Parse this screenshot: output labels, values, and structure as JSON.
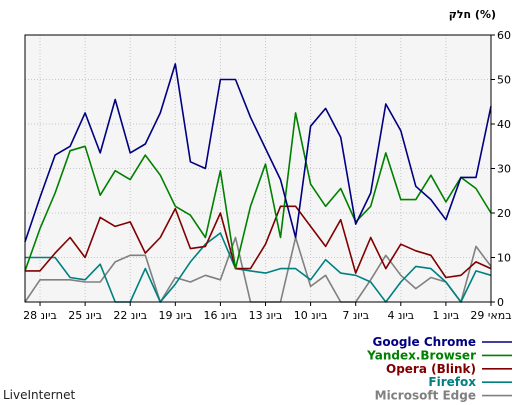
{
  "chart_data": {
    "type": "line",
    "unit_label": "חלק (%)",
    "ylim": [
      0,
      60
    ],
    "y_ticks": [
      "0",
      "10",
      "20",
      "30",
      "40",
      "50",
      "60"
    ],
    "x_tick_labels": [
      "29 במאי",
      "1 ביונ",
      "4 ביונ",
      "7 ביונ",
      "10 ביונ",
      "13 ביונ",
      "16 ביונ",
      "19 ביונ",
      "22 ביונ",
      "25 ביונ",
      "28 ביונ"
    ],
    "grid": true,
    "legend_position": "bottom-right",
    "watermark": "LiveInternet",
    "series": [
      {
        "name": "Google Chrome",
        "color": "#000080",
        "values": [
          44,
          28,
          28,
          18.5,
          23,
          26,
          38.5,
          44.5,
          24.5,
          17.5,
          37,
          43.5,
          39.5,
          14.5,
          27.5,
          34.5,
          41.5,
          50,
          50,
          30,
          31.5,
          53.5,
          42.5,
          35.5,
          33.5,
          45.5,
          33.5,
          42.5,
          35,
          33,
          23.5,
          13.5
        ]
      },
      {
        "name": "Yandex.Browser",
        "color": "#008000",
        "values": [
          20,
          25.5,
          28,
          22.5,
          28.5,
          23,
          23,
          33.5,
          21.5,
          18,
          25.5,
          21.5,
          26.5,
          42.5,
          14.5,
          31,
          21.5,
          7.5,
          29.5,
          14.5,
          19.5,
          21.5,
          28.5,
          33,
          27.5,
          29.5,
          24,
          35,
          34,
          24.5,
          16.5,
          7
        ]
      },
      {
        "name": "Opera (Blink)",
        "color": "#800000",
        "values": [
          7.5,
          9,
          6,
          5.5,
          10.5,
          11.5,
          13,
          7.5,
          14.5,
          6.5,
          18.5,
          12.5,
          17,
          21.5,
          21.5,
          13,
          7.5,
          7.5,
          20,
          12.5,
          12,
          21,
          14.5,
          11,
          18,
          17,
          19,
          10,
          14.5,
          11,
          7,
          7
        ]
      },
      {
        "name": "Firefox",
        "color": "#008080",
        "values": [
          6,
          7,
          0,
          4.5,
          7.5,
          8,
          4.5,
          0,
          4.5,
          6,
          6.5,
          9.5,
          5,
          7.5,
          7.5,
          6.5,
          7,
          7.5,
          15.5,
          13,
          9,
          4,
          0,
          7.5,
          0,
          0,
          8.5,
          5,
          5.5,
          10,
          10,
          10
        ]
      },
      {
        "name": "Microsoft Edge",
        "color": "#808080",
        "values": [
          8,
          12.5,
          0,
          4.5,
          5.5,
          3,
          6,
          10.5,
          5,
          0,
          0,
          6,
          3.5,
          14.5,
          0,
          0,
          0,
          14.5,
          5,
          6,
          4.5,
          5.5,
          0,
          10.5,
          10.5,
          9,
          4.5,
          4.5,
          5,
          5,
          5,
          0
        ]
      }
    ]
  }
}
